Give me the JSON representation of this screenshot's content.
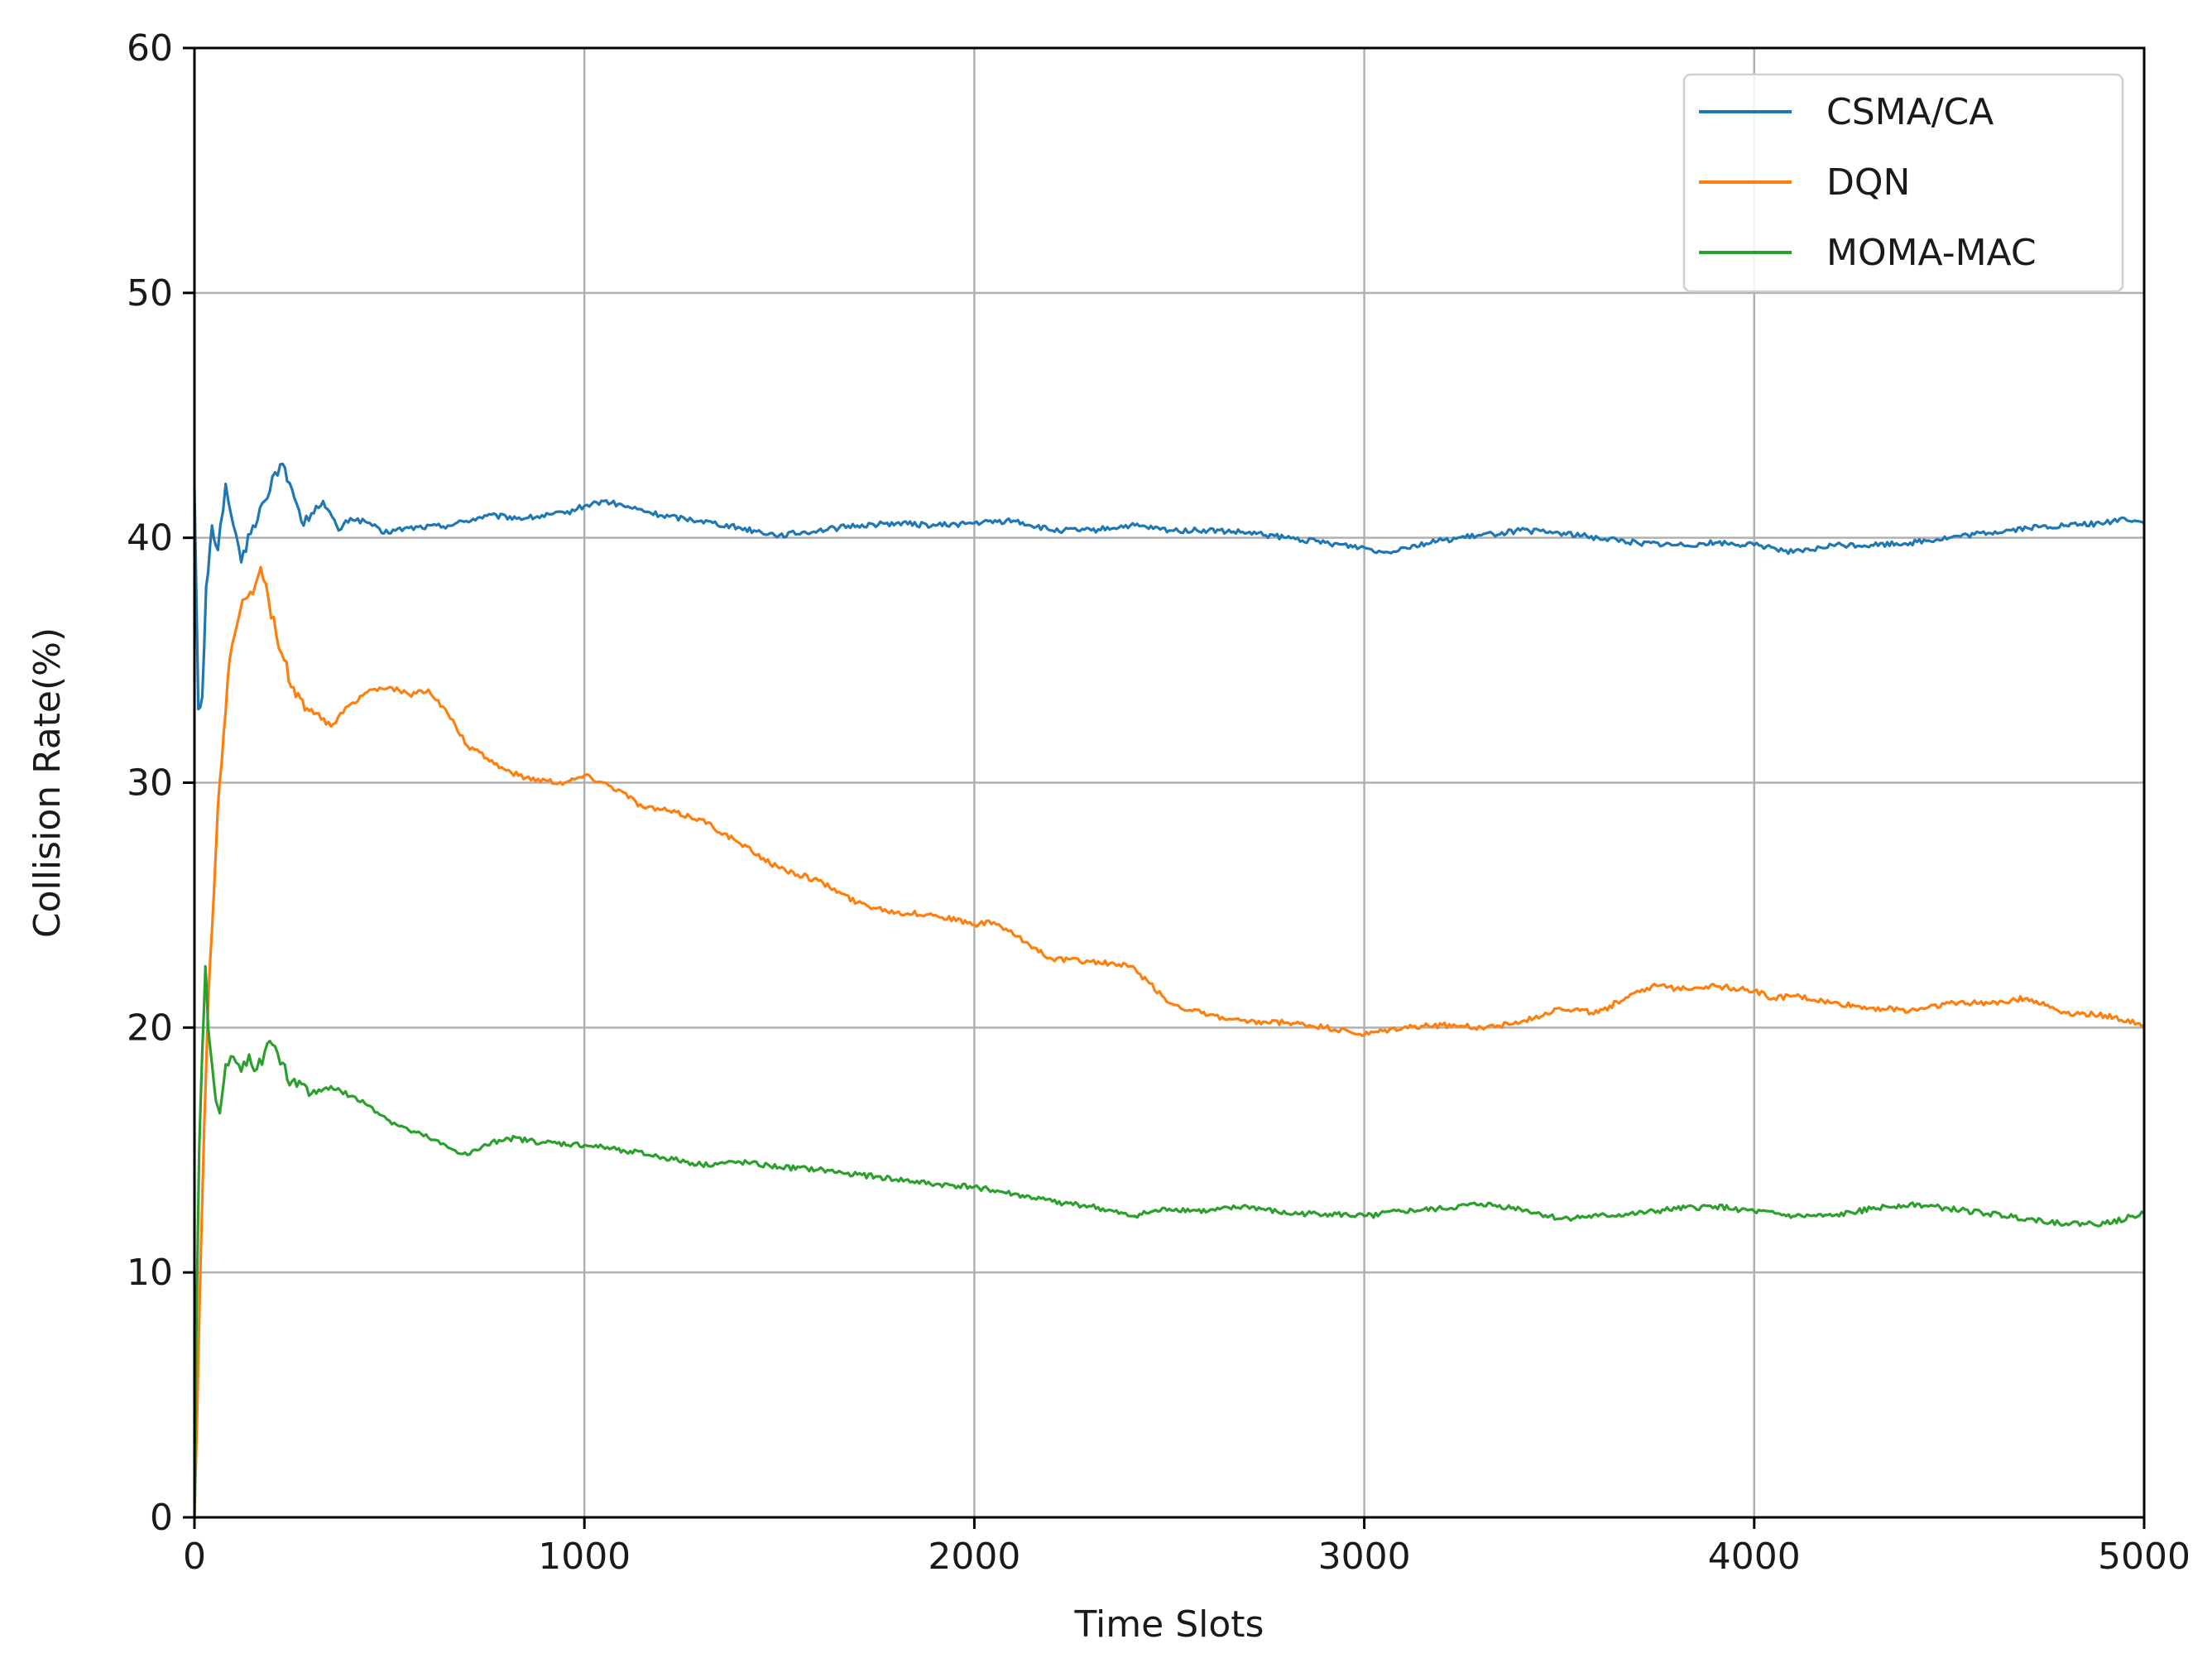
{
  "chart_data": {
    "type": "line",
    "title": "",
    "xlabel": "Time Slots",
    "ylabel": "Collision Rate(%)",
    "xlim": [
      0,
      5000
    ],
    "ylim": [
      0,
      60
    ],
    "x_ticks": [
      0,
      1000,
      2000,
      3000,
      4000,
      5000
    ],
    "y_ticks": [
      0,
      10,
      20,
      30,
      40,
      50,
      60
    ],
    "x_tick_labels": [
      "0",
      "1000",
      "2000",
      "3000",
      "4000",
      "5000"
    ],
    "y_tick_labels": [
      "0",
      "10",
      "20",
      "30",
      "40",
      "50",
      "60"
    ],
    "grid": true,
    "legend_position": "top-right",
    "series": [
      {
        "name": "CSMA/CA",
        "color": "#1f77b4",
        "points": [
          [
            0,
            42
          ],
          [
            10,
            33
          ],
          [
            20,
            33.5
          ],
          [
            30,
            38
          ],
          [
            45,
            40.5
          ],
          [
            60,
            39.5
          ],
          [
            80,
            42.2
          ],
          [
            100,
            40.5
          ],
          [
            120,
            39
          ],
          [
            150,
            40.5
          ],
          [
            180,
            41.5
          ],
          [
            200,
            42.5
          ],
          [
            220,
            43
          ],
          [
            250,
            42
          ],
          [
            280,
            40.5
          ],
          [
            300,
            41
          ],
          [
            330,
            41.5
          ],
          [
            370,
            40.3
          ],
          [
            400,
            40.8
          ],
          [
            450,
            40.6
          ],
          [
            480,
            40.2
          ],
          [
            550,
            40.4
          ],
          [
            650,
            40.5
          ],
          [
            750,
            40.9
          ],
          [
            850,
            40.8
          ],
          [
            950,
            41
          ],
          [
            1000,
            41.3
          ],
          [
            1050,
            41.5
          ],
          [
            1100,
            41.3
          ],
          [
            1200,
            40.9
          ],
          [
            1300,
            40.7
          ],
          [
            1400,
            40.4
          ],
          [
            1500,
            40.1
          ],
          [
            1600,
            40.3
          ],
          [
            1700,
            40.5
          ],
          [
            1800,
            40.6
          ],
          [
            1900,
            40.5
          ],
          [
            2000,
            40.6
          ],
          [
            2100,
            40.7
          ],
          [
            2200,
            40.3
          ],
          [
            2300,
            40.3
          ],
          [
            2400,
            40.5
          ],
          [
            2500,
            40.3
          ],
          [
            2600,
            40.3
          ],
          [
            2700,
            40.2
          ],
          [
            2800,
            40
          ],
          [
            2900,
            39.8
          ],
          [
            3000,
            39.6
          ],
          [
            3050,
            39.4
          ],
          [
            3100,
            39.6
          ],
          [
            3200,
            39.9
          ],
          [
            3300,
            40.1
          ],
          [
            3400,
            40.3
          ],
          [
            3500,
            40.2
          ],
          [
            3600,
            40
          ],
          [
            3700,
            39.8
          ],
          [
            3800,
            39.7
          ],
          [
            3900,
            39.8
          ],
          [
            4000,
            39.7
          ],
          [
            4050,
            39.6
          ],
          [
            4100,
            39.4
          ],
          [
            4150,
            39.5
          ],
          [
            4200,
            39.7
          ],
          [
            4300,
            39.7
          ],
          [
            4400,
            39.8
          ],
          [
            4500,
            40
          ],
          [
            4600,
            40.2
          ],
          [
            4700,
            40.4
          ],
          [
            4800,
            40.5
          ],
          [
            4900,
            40.6
          ],
          [
            4950,
            40.8
          ],
          [
            5000,
            40.6
          ]
        ]
      },
      {
        "name": "DQN",
        "color": "#ff7f0e",
        "points": [
          [
            0,
            0
          ],
          [
            8,
            5
          ],
          [
            15,
            10
          ],
          [
            25,
            16
          ],
          [
            35,
            21
          ],
          [
            45,
            24
          ],
          [
            60,
            29
          ],
          [
            75,
            32
          ],
          [
            90,
            35
          ],
          [
            110,
            36.5
          ],
          [
            130,
            37.5
          ],
          [
            150,
            37.7
          ],
          [
            170,
            38.8
          ],
          [
            190,
            37.5
          ],
          [
            210,
            36
          ],
          [
            230,
            35
          ],
          [
            260,
            33.5
          ],
          [
            300,
            33
          ],
          [
            350,
            32.3
          ],
          [
            400,
            33.2
          ],
          [
            450,
            33.8
          ],
          [
            500,
            33.9
          ],
          [
            550,
            33.6
          ],
          [
            600,
            33.8
          ],
          [
            650,
            32.8
          ],
          [
            700,
            31.5
          ],
          [
            750,
            31
          ],
          [
            800,
            30.5
          ],
          [
            850,
            30.2
          ],
          [
            900,
            30.1
          ],
          [
            950,
            30
          ],
          [
            1000,
            30.3
          ],
          [
            1050,
            30
          ],
          [
            1100,
            29.6
          ],
          [
            1150,
            29
          ],
          [
            1200,
            28.9
          ],
          [
            1300,
            28.5
          ],
          [
            1400,
            27.5
          ],
          [
            1500,
            26.5
          ],
          [
            1600,
            26
          ],
          [
            1700,
            25.1
          ],
          [
            1800,
            24.7
          ],
          [
            1900,
            24.6
          ],
          [
            2000,
            24.2
          ],
          [
            2050,
            24.3
          ],
          [
            2100,
            23.8
          ],
          [
            2200,
            22.8
          ],
          [
            2300,
            22.7
          ],
          [
            2400,
            22.5
          ],
          [
            2450,
            21.8
          ],
          [
            2500,
            21
          ],
          [
            2600,
            20.5
          ],
          [
            2700,
            20.2
          ],
          [
            2800,
            20.2
          ],
          [
            2900,
            20
          ],
          [
            3000,
            19.7
          ],
          [
            3100,
            20
          ],
          [
            3200,
            20.1
          ],
          [
            3300,
            20
          ],
          [
            3400,
            20.2
          ],
          [
            3500,
            20.8
          ],
          [
            3600,
            20.6
          ],
          [
            3700,
            21.5
          ],
          [
            3750,
            21.7
          ],
          [
            3800,
            21.6
          ],
          [
            3900,
            21.7
          ],
          [
            4000,
            21.5
          ],
          [
            4050,
            21.2
          ],
          [
            4100,
            21.3
          ],
          [
            4200,
            21
          ],
          [
            4300,
            20.8
          ],
          [
            4400,
            20.7
          ],
          [
            4500,
            21
          ],
          [
            4600,
            21
          ],
          [
            4700,
            21.2
          ],
          [
            4800,
            20.6
          ],
          [
            4900,
            20.5
          ],
          [
            5000,
            20.1
          ]
        ]
      },
      {
        "name": "MOMA-MAC",
        "color": "#2ca02c",
        "points": [
          [
            0,
            0
          ],
          [
            5,
            8
          ],
          [
            12,
            15
          ],
          [
            20,
            19
          ],
          [
            28,
            22.5
          ],
          [
            35,
            20
          ],
          [
            45,
            18.5
          ],
          [
            55,
            17
          ],
          [
            65,
            16.5
          ],
          [
            80,
            18.5
          ],
          [
            100,
            18.8
          ],
          [
            120,
            18.2
          ],
          [
            140,
            18.9
          ],
          [
            160,
            18.3
          ],
          [
            180,
            19
          ],
          [
            200,
            19.3
          ],
          [
            220,
            18.5
          ],
          [
            250,
            17.8
          ],
          [
            300,
            17.3
          ],
          [
            350,
            17.6
          ],
          [
            400,
            17.2
          ],
          [
            450,
            16.8
          ],
          [
            500,
            16.2
          ],
          [
            550,
            15.8
          ],
          [
            600,
            15.5
          ],
          [
            650,
            15.1
          ],
          [
            700,
            14.8
          ],
          [
            750,
            15.2
          ],
          [
            800,
            15.5
          ],
          [
            900,
            15.3
          ],
          [
            1000,
            15.2
          ],
          [
            1100,
            15
          ],
          [
            1200,
            14.7
          ],
          [
            1300,
            14.4
          ],
          [
            1400,
            14.5
          ],
          [
            1500,
            14.3
          ],
          [
            1600,
            14.2
          ],
          [
            1700,
            14
          ],
          [
            1800,
            13.8
          ],
          [
            1900,
            13.6
          ],
          [
            2000,
            13.5
          ],
          [
            2100,
            13.2
          ],
          [
            2200,
            12.9
          ],
          [
            2300,
            12.7
          ],
          [
            2400,
            12.3
          ],
          [
            2500,
            12.6
          ],
          [
            2600,
            12.5
          ],
          [
            2700,
            12.7
          ],
          [
            2800,
            12.4
          ],
          [
            2900,
            12.4
          ],
          [
            3000,
            12.3
          ],
          [
            3100,
            12.5
          ],
          [
            3200,
            12.6
          ],
          [
            3300,
            12.8
          ],
          [
            3400,
            12.6
          ],
          [
            3500,
            12.2
          ],
          [
            3600,
            12.3
          ],
          [
            3700,
            12.4
          ],
          [
            3800,
            12.6
          ],
          [
            3900,
            12.7
          ],
          [
            4000,
            12.5
          ],
          [
            4100,
            12.3
          ],
          [
            4200,
            12.3
          ],
          [
            4300,
            12.6
          ],
          [
            4400,
            12.8
          ],
          [
            4500,
            12.6
          ],
          [
            4600,
            12.4
          ],
          [
            4700,
            12.2
          ],
          [
            4800,
            12
          ],
          [
            4900,
            12
          ],
          [
            5000,
            12.4
          ]
        ]
      }
    ]
  }
}
